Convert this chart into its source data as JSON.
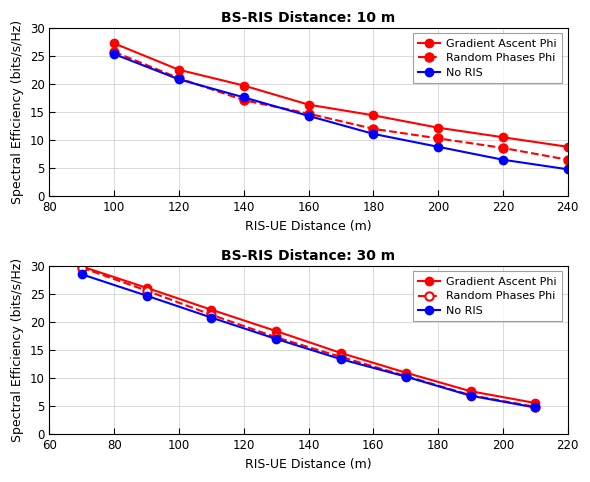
{
  "subplot1": {
    "title": "BS-RIS Distance: 10 m",
    "xlabel": "RIS-UE Distance (m)",
    "ylabel": "Spectral Efficiency (bits/s/Hz)",
    "xlim": [
      80,
      240
    ],
    "ylim": [
      0,
      30
    ],
    "xticks": [
      80,
      100,
      120,
      140,
      160,
      180,
      200,
      220,
      240
    ],
    "yticks": [
      0,
      5,
      10,
      15,
      20,
      25,
      30
    ],
    "gradient_x": [
      100,
      120,
      140,
      160,
      180,
      200,
      220,
      240
    ],
    "gradient_y": [
      27.2,
      22.5,
      19.7,
      16.3,
      14.4,
      12.2,
      10.5,
      8.8
    ],
    "random_x": [
      100,
      120,
      140,
      160,
      180,
      200,
      220,
      240
    ],
    "random_y": [
      25.7,
      21.0,
      17.1,
      14.7,
      12.0,
      10.3,
      8.6,
      6.5
    ],
    "noris_x": [
      100,
      120,
      140,
      160,
      180,
      200,
      220,
      240
    ],
    "noris_y": [
      25.3,
      20.8,
      17.6,
      14.3,
      11.1,
      8.8,
      6.5,
      4.8
    ],
    "random_open_marker": false
  },
  "subplot2": {
    "title": "BS-RIS Distance: 30 m",
    "xlabel": "RIS-UE Distance (m)",
    "ylabel": "Spectral Efficiency (bits/s/Hz)",
    "xlim": [
      60,
      220
    ],
    "ylim": [
      0,
      30
    ],
    "xticks": [
      60,
      80,
      100,
      120,
      140,
      160,
      180,
      200,
      220
    ],
    "yticks": [
      0,
      5,
      10,
      15,
      20,
      25,
      30
    ],
    "gradient_x": [
      70,
      90,
      110,
      130,
      150,
      170,
      190,
      210
    ],
    "gradient_y": [
      29.9,
      26.1,
      22.2,
      18.4,
      14.5,
      11.0,
      7.7,
      5.6
    ],
    "random_x": [
      70,
      90,
      110,
      130,
      150,
      170,
      190,
      210
    ],
    "random_y": [
      29.7,
      25.6,
      21.3,
      17.3,
      13.8,
      10.4,
      7.0,
      4.9
    ],
    "noris_x": [
      70,
      90,
      110,
      130,
      150,
      170,
      190,
      210
    ],
    "noris_y": [
      28.5,
      24.7,
      20.8,
      17.0,
      13.4,
      10.3,
      6.9,
      4.8
    ],
    "random_open_marker": true
  },
  "colors": {
    "gradient": "#FF0000",
    "random": "#FF0000",
    "noris": "#0000FF"
  },
  "legend_labels": [
    "Gradient Ascent Phi",
    "Random Phases Phi",
    "No RIS"
  ]
}
